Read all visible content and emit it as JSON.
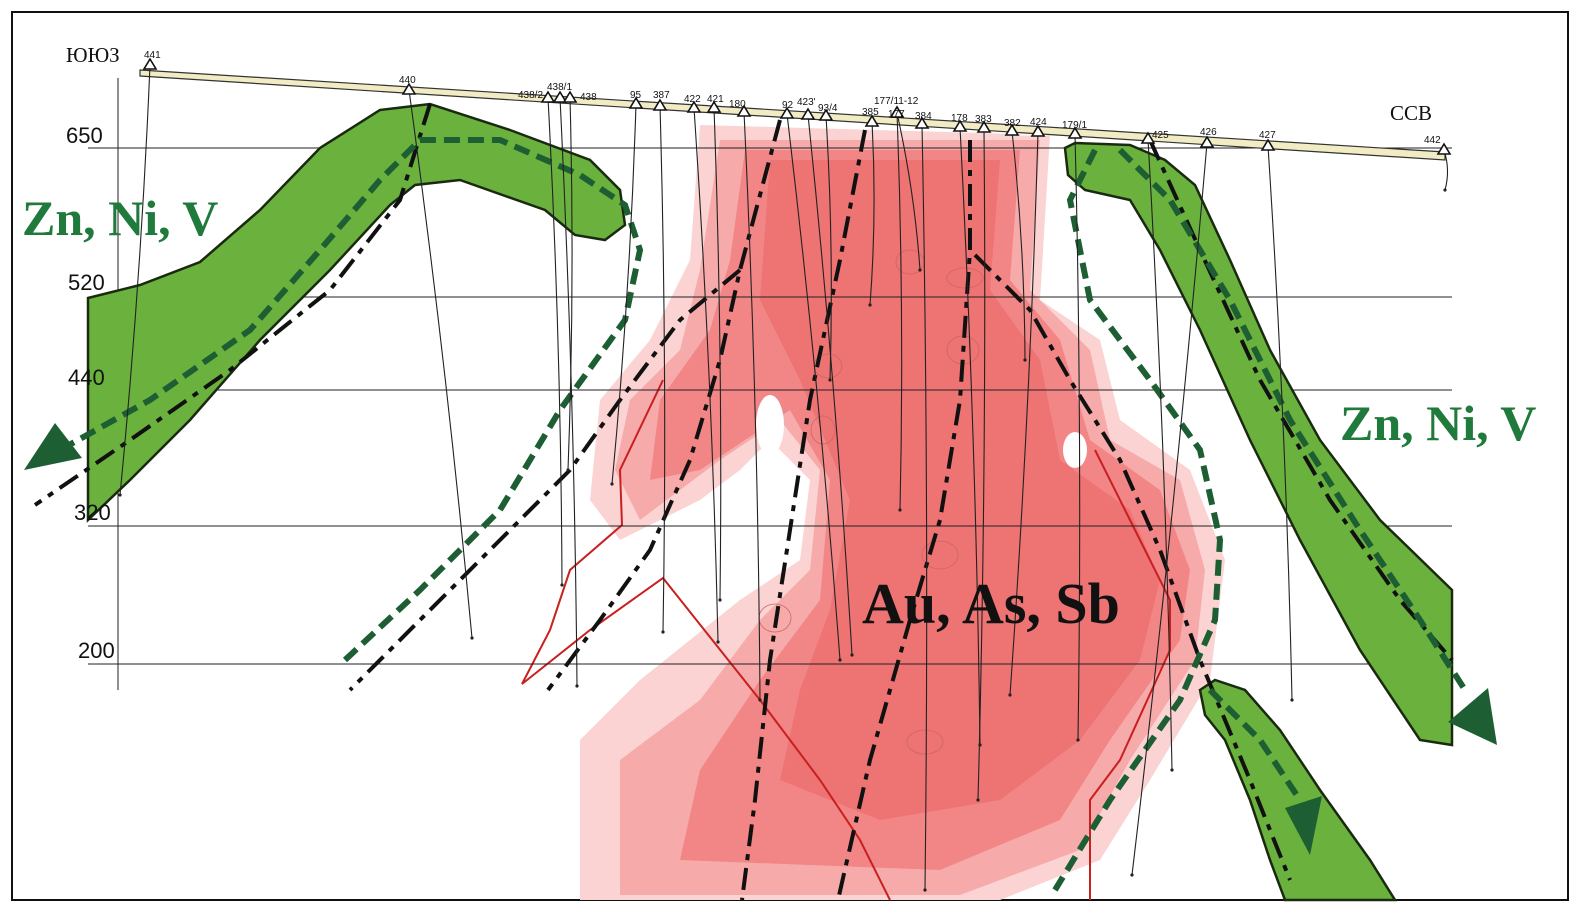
{
  "directions": {
    "left": "ЮЮЗ",
    "right": "ССВ"
  },
  "elevations": [
    "650",
    "520",
    "440",
    "320",
    "200"
  ],
  "boreholes": [
    "441",
    "440",
    "438/2",
    "438/1",
    "438",
    "95",
    "387",
    "422",
    "421",
    "180",
    "92",
    "423'",
    "93/4",
    "385",
    "177/11-12",
    "177",
    "384",
    "178",
    "383",
    "382",
    "424",
    "179/1",
    "425",
    "426",
    "427",
    "442"
  ],
  "zones": {
    "left_green": "Zn, Ni, V",
    "right_green": "Zn, Ni, V",
    "red": "Au, As, Sb"
  }
}
